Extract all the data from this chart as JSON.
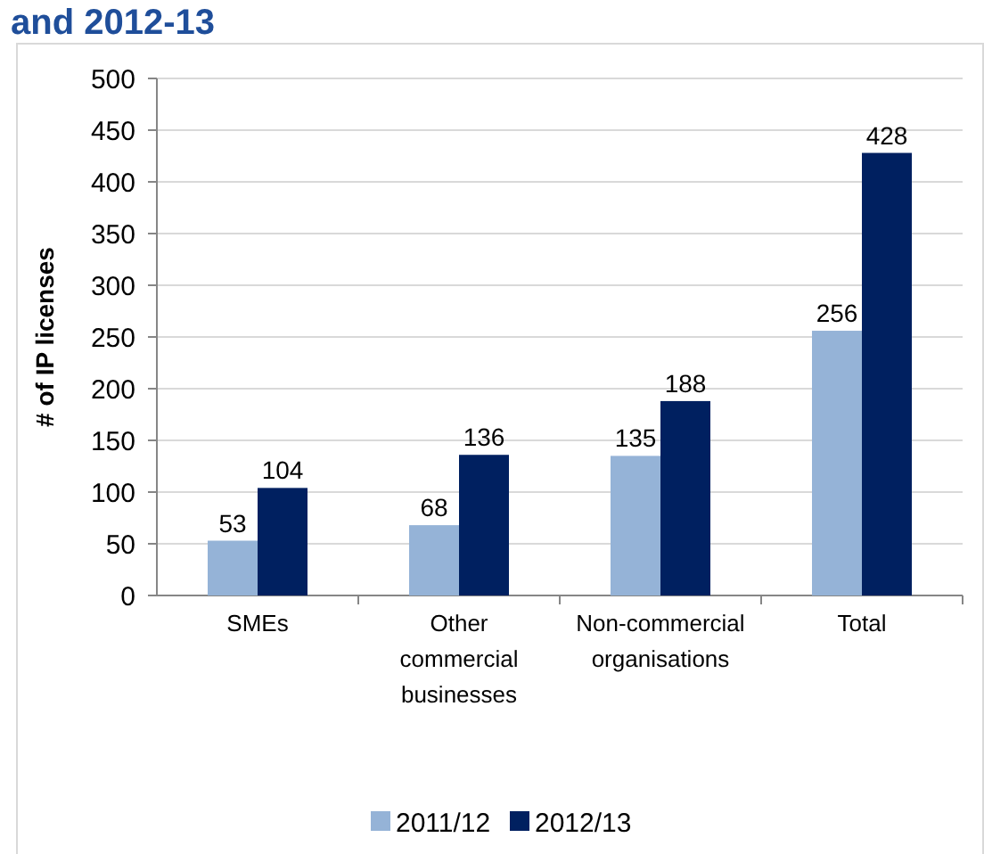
{
  "chart_data": {
    "type": "bar",
    "title": "and 2012-13",
    "ylabel": "# of IP licenses",
    "categories": [
      "SMEs",
      "Other commercial businesses",
      "Non-commercial organisations",
      "Total"
    ],
    "series": [
      {
        "name": "2011/12",
        "color": "#95b3d7",
        "values": [
          53,
          68,
          135,
          256
        ]
      },
      {
        "name": "2012/13",
        "color": "#002060",
        "values": [
          104,
          136,
          188,
          428
        ]
      }
    ],
    "ylim": [
      0,
      500
    ],
    "yticks": [
      0,
      50,
      100,
      150,
      200,
      250,
      300,
      350,
      400,
      450,
      500
    ],
    "grid": "y",
    "data_labels": true,
    "legend": "bottom"
  }
}
